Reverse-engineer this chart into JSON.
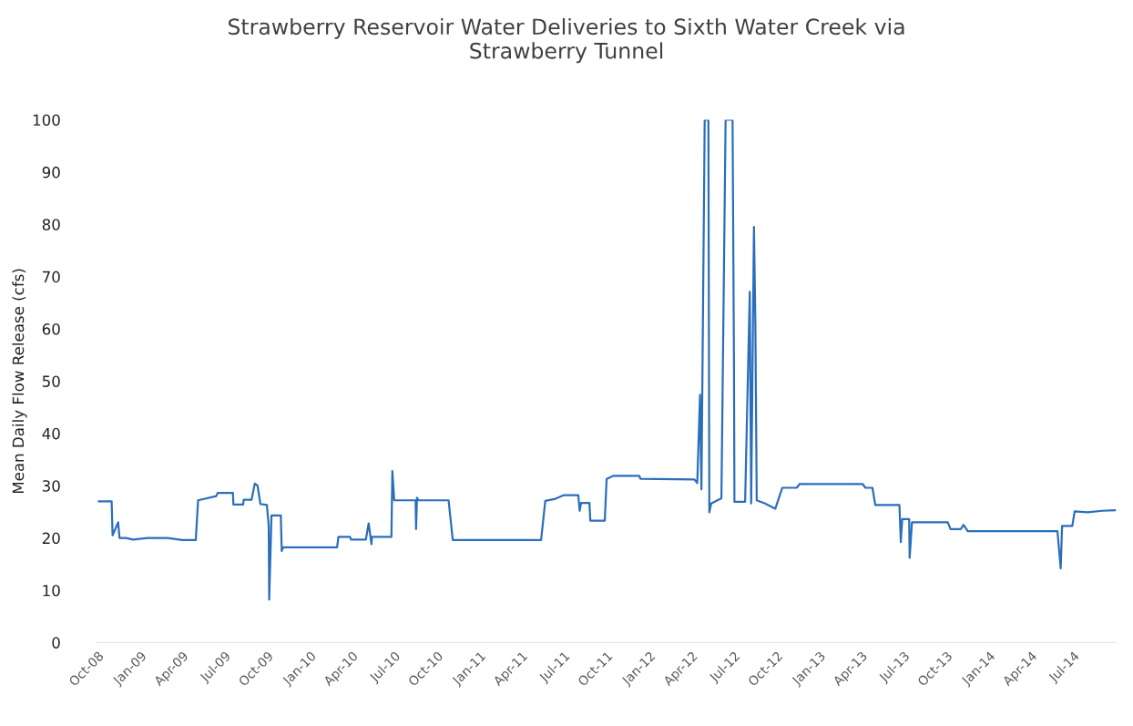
{
  "chart_data": {
    "type": "line",
    "title": "Strawberry Reservoir Water Deliveries to Sixth Water Creek via\nStrawberry Tunnel",
    "ylabel": "Mean Daily Flow Release (cfs)",
    "x": [
      "2008-10-03",
      "2008-10-31",
      "2008-11-02",
      "2008-11-14",
      "2008-11-17",
      "2008-12-01",
      "2008-12-16",
      "2009-01-16",
      "2009-03-01",
      "2009-04-01",
      "2009-04-30",
      "2009-05-05",
      "2009-06-13",
      "2009-06-16",
      "2009-07-19",
      "2009-07-20",
      "2009-08-10",
      "2009-08-11",
      "2009-08-28",
      "2009-09-04",
      "2009-09-10",
      "2009-09-16",
      "2009-09-30",
      "2009-10-04",
      "2009-10-05",
      "2009-10-10",
      "2009-10-30",
      "2009-11-01",
      "2009-11-04",
      "2010-02-28",
      "2010-03-03",
      "2010-03-28",
      "2010-03-30",
      "2010-05-01",
      "2010-05-07",
      "2010-05-13",
      "2010-05-14",
      "2010-06-25",
      "2010-06-27",
      "2010-07-01",
      "2010-08-16",
      "2010-08-17",
      "2010-08-19",
      "2010-08-22",
      "2010-10-26",
      "2010-11-04",
      "2011-05-13",
      "2011-05-22",
      "2011-06-13",
      "2011-07-01",
      "2011-08-01",
      "2011-08-04",
      "2011-08-07",
      "2011-08-25",
      "2011-08-27",
      "2011-09-27",
      "2011-10-01",
      "2011-10-16",
      "2011-12-10",
      "2011-12-13",
      "2012-04-07",
      "2012-04-13",
      "2012-04-19",
      "2012-04-22",
      "2012-04-29",
      "2012-05-07",
      "2012-05-09",
      "2012-05-13",
      "2012-06-04",
      "2012-06-13",
      "2012-06-28",
      "2012-07-01",
      "2012-07-02",
      "2012-07-25",
      "2012-08-04",
      "2012-08-07",
      "2012-08-13",
      "2012-08-16",
      "2012-08-19",
      "2012-09-06",
      "2012-09-28",
      "2012-10-13",
      "2012-11-13",
      "2012-11-19",
      "2013-04-04",
      "2013-04-10",
      "2013-04-25",
      "2013-05-01",
      "2013-06-22",
      "2013-06-25",
      "2013-06-28",
      "2013-07-13",
      "2013-07-14",
      "2013-07-19",
      "2013-10-04",
      "2013-10-10",
      "2013-11-01",
      "2013-11-07",
      "2013-11-16",
      "2014-05-28",
      "2014-06-04",
      "2014-06-07",
      "2014-06-29",
      "2014-07-04",
      "2014-08-01",
      "2014-09-01",
      "2014-09-30"
    ],
    "series": [
      {
        "color": "#2a6ebb",
        "values": [
          27,
          27,
          20.5,
          23,
          20,
          20,
          19.7,
          20,
          20,
          19.6,
          19.6,
          27.2,
          28,
          28.6,
          28.6,
          26.4,
          26.4,
          27.3,
          27.3,
          30.4,
          30,
          26.5,
          26.3,
          22.3,
          8.2,
          24.3,
          24.3,
          17.5,
          18.2,
          18.2,
          20.2,
          20.2,
          19.7,
          19.7,
          22.8,
          18.8,
          20.2,
          20.2,
          32.8,
          27.2,
          27.2,
          21.7,
          27.7,
          27.2,
          27.2,
          19.6,
          19.6,
          27.1,
          27.5,
          28.2,
          28.2,
          25.2,
          26.7,
          26.7,
          23.3,
          23.3,
          31.3,
          31.9,
          31.9,
          31.3,
          31.2,
          30.5,
          47.4,
          29.3,
          100,
          100,
          24.9,
          26.6,
          27.6,
          100,
          100,
          53.4,
          26.9,
          26.9,
          67.1,
          26.6,
          79.5,
          61.5,
          27.2,
          26.6,
          25.6,
          29.6,
          29.6,
          30.3,
          30.3,
          29.6,
          29.6,
          26.3,
          26.3,
          19.2,
          23.6,
          23.6,
          16.2,
          23,
          23,
          21.7,
          21.7,
          22.5,
          21.3,
          21.3,
          14.2,
          22.3,
          22.3,
          25.1,
          24.9,
          25.2,
          25.3
        ]
      }
    ],
    "xticks": [
      {
        "value": "2008-10-01",
        "label": "Oct-08"
      },
      {
        "value": "2009-01-01",
        "label": "Jan-09"
      },
      {
        "value": "2009-04-01",
        "label": "Apr-09"
      },
      {
        "value": "2009-07-01",
        "label": "Jul-09"
      },
      {
        "value": "2009-10-01",
        "label": "Oct-09"
      },
      {
        "value": "2010-01-01",
        "label": "Jan-10"
      },
      {
        "value": "2010-04-01",
        "label": "Apr-10"
      },
      {
        "value": "2010-07-01",
        "label": "Jul-10"
      },
      {
        "value": "2010-10-01",
        "label": "Oct-10"
      },
      {
        "value": "2011-01-01",
        "label": "Jan-11"
      },
      {
        "value": "2011-04-01",
        "label": "Apr-11"
      },
      {
        "value": "2011-07-01",
        "label": "Jul-11"
      },
      {
        "value": "2011-10-01",
        "label": "Oct-11"
      },
      {
        "value": "2012-01-01",
        "label": "Jan-12"
      },
      {
        "value": "2012-04-01",
        "label": "Apr-12"
      },
      {
        "value": "2012-07-01",
        "label": "Jul-12"
      },
      {
        "value": "2012-10-01",
        "label": "Oct-12"
      },
      {
        "value": "2013-01-01",
        "label": "Jan-13"
      },
      {
        "value": "2013-04-01",
        "label": "Apr-13"
      },
      {
        "value": "2013-07-01",
        "label": "Jul-13"
      },
      {
        "value": "2013-10-01",
        "label": "Oct-13"
      },
      {
        "value": "2014-01-01",
        "label": "Jan-14"
      },
      {
        "value": "2014-04-01",
        "label": "Apr-14"
      },
      {
        "value": "2014-07-01",
        "label": "Jul-14"
      }
    ],
    "xlim": [
      "2008-09-28",
      "2014-10-01"
    ],
    "ylim": [
      0,
      100
    ],
    "yticks": [
      0,
      10,
      20,
      30,
      40,
      50,
      60,
      70,
      80,
      90,
      100
    ],
    "grid": false,
    "legend": false
  }
}
